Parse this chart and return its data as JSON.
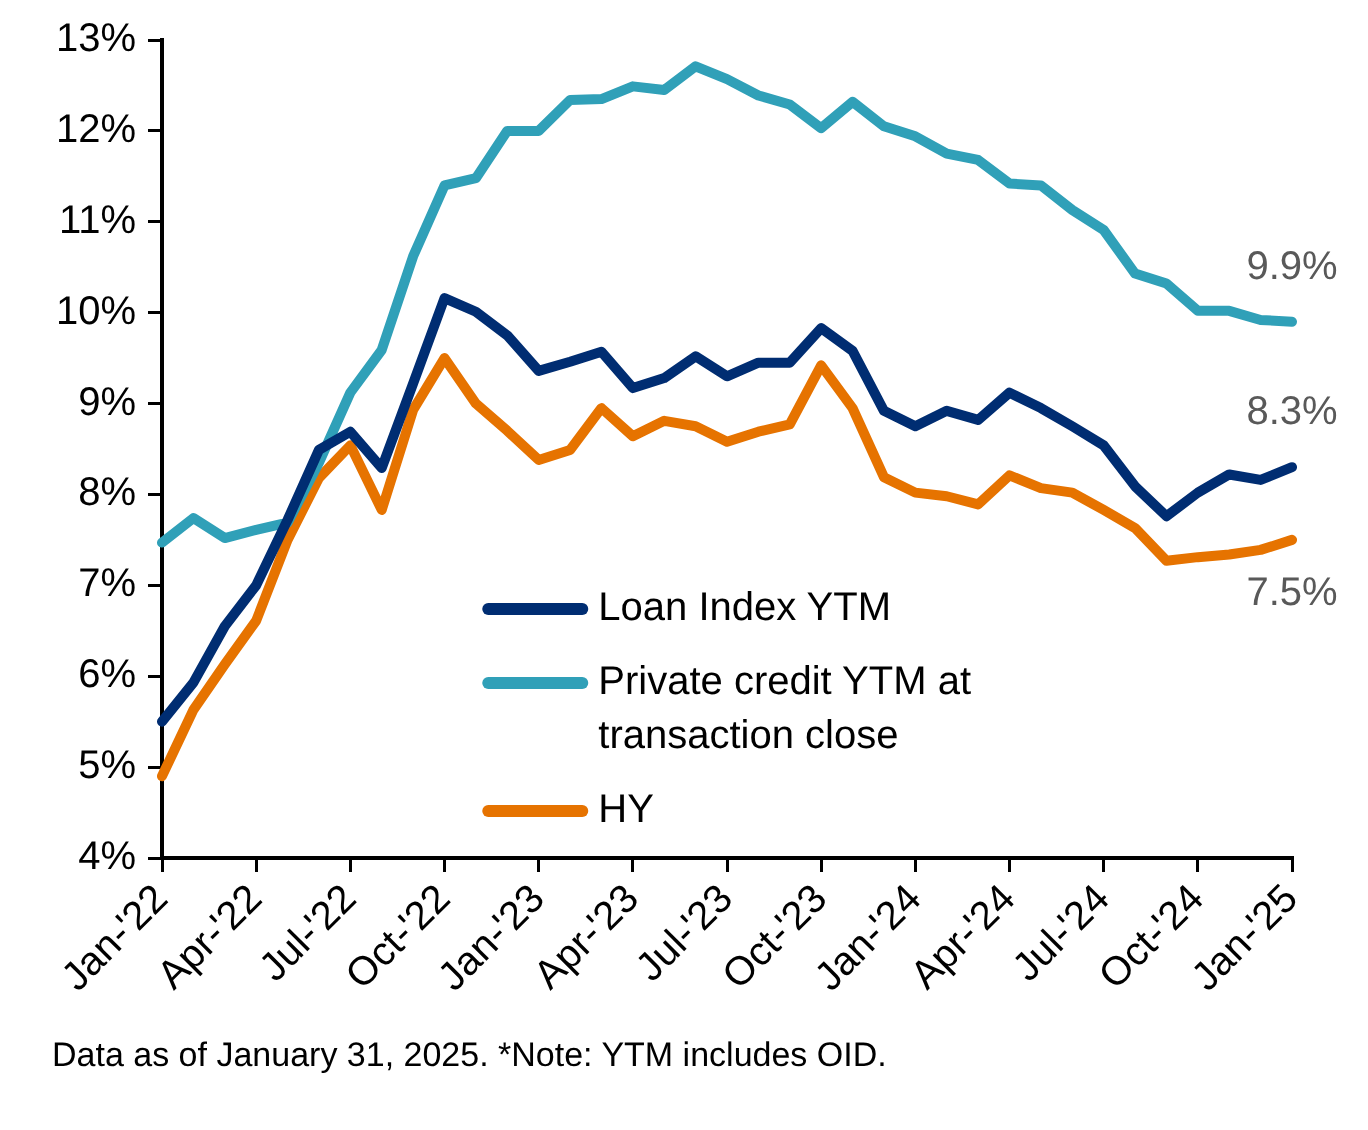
{
  "chart_data": {
    "type": "line",
    "categories": [
      "Jan-'22",
      null,
      null,
      "Apr-'22",
      null,
      null,
      "Jul-'22",
      null,
      null,
      "Oct-'22",
      null,
      null,
      "Jan-'23",
      null,
      null,
      "Apr-'23",
      null,
      null,
      "Jul-'23",
      null,
      null,
      "Oct-'23",
      null,
      null,
      "Jan-'24",
      null,
      null,
      "Apr-'24",
      null,
      null,
      "Jul-'24",
      null,
      null,
      "Oct-'24",
      null,
      null,
      "Jan-'25"
    ],
    "series": [
      {
        "name": "Loan Index YTM",
        "color": "#002d72",
        "values": [
          5.5,
          5.93,
          6.55,
          7.0,
          7.72,
          8.49,
          8.69,
          8.29,
          9.22,
          10.16,
          10.01,
          9.75,
          9.36,
          9.46,
          9.57,
          9.17,
          9.28,
          9.52,
          9.3,
          9.45,
          9.45,
          9.83,
          9.58,
          8.92,
          8.75,
          8.92,
          8.82,
          9.12,
          8.95,
          8.75,
          8.54,
          8.09,
          7.76,
          8.02,
          8.22,
          8.16,
          8.3
        ],
        "value_labels": [
          null,
          null,
          null,
          null,
          null,
          null,
          null,
          null,
          null,
          null,
          null,
          null,
          null,
          null,
          null,
          null,
          null,
          null,
          null,
          null,
          null,
          null,
          null,
          null,
          null,
          null,
          null,
          null,
          null,
          null,
          null,
          null,
          null,
          null,
          null,
          null,
          "8.3%"
        ]
      },
      {
        "name": "Private credit YTM at transaction close",
        "color": "#30a0b8",
        "values": [
          7.47,
          7.74,
          7.52,
          7.61,
          7.69,
          8.35,
          9.12,
          9.59,
          10.62,
          11.4,
          11.48,
          12.0,
          12.0,
          12.34,
          12.35,
          12.49,
          12.45,
          12.71,
          12.57,
          12.39,
          12.29,
          12.03,
          12.32,
          12.05,
          11.94,
          11.75,
          11.68,
          11.42,
          11.4,
          11.13,
          10.91,
          10.43,
          10.32,
          10.02,
          10.02,
          9.92,
          9.9
        ],
        "value_labels": [
          null,
          null,
          null,
          null,
          null,
          null,
          null,
          null,
          null,
          null,
          null,
          null,
          null,
          null,
          null,
          null,
          null,
          null,
          null,
          null,
          null,
          null,
          null,
          null,
          null,
          null,
          null,
          null,
          null,
          null,
          null,
          null,
          null,
          null,
          null,
          null,
          "9.9%"
        ]
      },
      {
        "name": "HY",
        "color": "#e67300",
        "values": [
          4.9,
          5.63,
          6.13,
          6.61,
          7.5,
          8.18,
          8.54,
          7.83,
          8.93,
          9.5,
          9.0,
          8.7,
          8.38,
          8.49,
          8.95,
          8.64,
          8.81,
          8.75,
          8.58,
          8.69,
          8.77,
          9.42,
          8.95,
          8.19,
          8.02,
          7.98,
          7.89,
          8.21,
          8.07,
          8.02,
          7.83,
          7.63,
          7.27,
          7.31,
          7.34,
          7.39,
          7.5
        ],
        "value_labels": [
          null,
          null,
          null,
          null,
          null,
          null,
          null,
          null,
          null,
          null,
          null,
          null,
          null,
          null,
          null,
          null,
          null,
          null,
          null,
          null,
          null,
          null,
          null,
          null,
          null,
          null,
          null,
          null,
          null,
          null,
          null,
          null,
          null,
          null,
          null,
          null,
          "7.5%"
        ]
      }
    ],
    "ylim": [
      4,
      13
    ],
    "yticks": [
      {
        "value": 4,
        "label": "4%"
      },
      {
        "value": 5,
        "label": "5%"
      },
      {
        "value": 6,
        "label": "6%"
      },
      {
        "value": 7,
        "label": "7%"
      },
      {
        "value": 8,
        "label": "8%"
      },
      {
        "value": 9,
        "label": "9%"
      },
      {
        "value": 10,
        "label": "10%"
      },
      {
        "value": 11,
        "label": "11%"
      },
      {
        "value": 12,
        "label": "12%"
      },
      {
        "value": 13,
        "label": "13%"
      }
    ],
    "grid": false,
    "legend": "bottom",
    "annotations": [
      "Data as of January 31, 2025. *Note: YTM includes OID."
    ]
  }
}
